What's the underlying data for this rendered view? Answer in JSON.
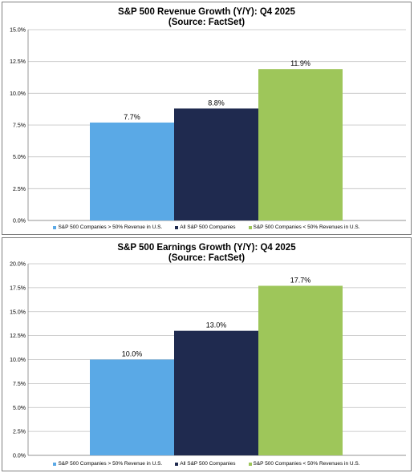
{
  "chart_data": [
    {
      "type": "bar",
      "title": "S&P 500 Revenue Growth (Y/Y): Q4 2025",
      "subtitle": "(Source: FactSet)",
      "categories": [
        "S&P 500 Companies > 50% Revenue in U.S.",
        "All S&P 500 Companies",
        "S&P 500 Companies < 50% Revenues in U.S."
      ],
      "values": [
        7.7,
        8.8,
        11.9
      ],
      "data_labels": [
        "7.7%",
        "8.8%",
        "11.9%"
      ],
      "colors": [
        "#5aa9e6",
        "#1f2a4f",
        "#9ec65a"
      ],
      "ylim": [
        0,
        15
      ],
      "yticks": [
        "0.0%",
        "2.5%",
        "5.0%",
        "7.5%",
        "10.0%",
        "12.5%",
        "15.0%"
      ],
      "grid": true,
      "legend": "bottom"
    },
    {
      "type": "bar",
      "title": "S&P 500 Earnings Growth (Y/Y): Q4 2025",
      "subtitle": "(Source: FactSet)",
      "categories": [
        "S&P 500 Companies > 50% Revenue in U.S.",
        "All S&P 500 Companies",
        "S&P 500 Companies < 50% Revenues in U.S."
      ],
      "values": [
        10.0,
        13.0,
        17.7
      ],
      "data_labels": [
        "10.0%",
        "13.0%",
        "17.7%"
      ],
      "colors": [
        "#5aa9e6",
        "#1f2a4f",
        "#9ec65a"
      ],
      "ylim": [
        0,
        20
      ],
      "yticks": [
        "0.0%",
        "2.5%",
        "5.0%",
        "7.5%",
        "10.0%",
        "12.5%",
        "15.0%",
        "17.5%",
        "20.0%"
      ],
      "grid": true,
      "legend": "bottom"
    }
  ]
}
